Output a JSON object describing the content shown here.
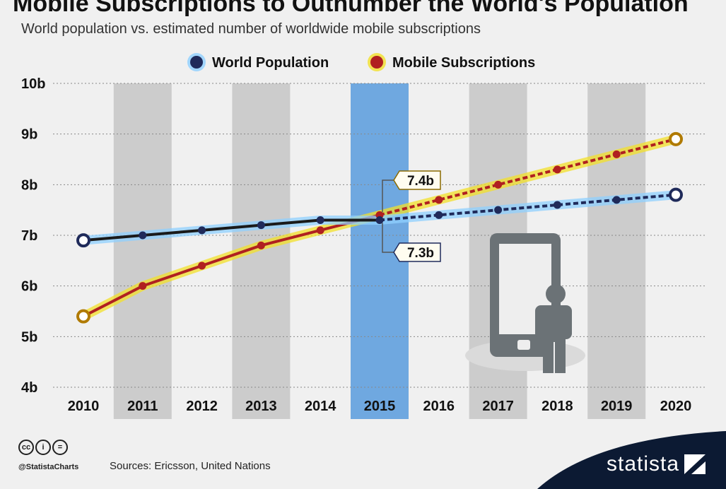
{
  "header": {
    "title": "Mobile Subscriptions to Outnumber the World's Population",
    "subtitle": "World population vs. estimated number of worldwide mobile subscriptions"
  },
  "footer": {
    "handle": "@StatistaCharts",
    "sources": "Sources: Ericsson, United Nations",
    "brand": "statista",
    "cc_icons": [
      "cc-icon",
      "by-icon",
      "nd-icon"
    ]
  },
  "colors": {
    "background": "#f0f0f0",
    "band": "#cccccc",
    "highlight": "#6fa8e0",
    "population": "#1f2a5a",
    "population_glow": "#8fd0ff",
    "subscriptions": "#b02020",
    "subscriptions_glow": "#f3e02a",
    "brand_bar": "#0c1a33"
  },
  "chart_data": {
    "type": "line",
    "x": [
      "2010",
      "2011",
      "2012",
      "2013",
      "2014",
      "2015",
      "2016",
      "2017",
      "2018",
      "2019",
      "2020"
    ],
    "ylim": [
      4,
      10
    ],
    "yticks": [
      "4b",
      "5b",
      "6b",
      "7b",
      "8b",
      "9b",
      "10b"
    ],
    "legend_position": "top",
    "projection_from": "2015",
    "highlight_category": "2015",
    "series": [
      {
        "name": "World Population",
        "values": [
          6.9,
          7.0,
          7.1,
          7.2,
          7.3,
          7.3,
          7.4,
          7.5,
          7.6,
          7.7,
          7.8
        ]
      },
      {
        "name": "Mobile Subscriptions",
        "values": [
          5.4,
          6.0,
          6.4,
          6.8,
          7.1,
          7.4,
          7.7,
          8.0,
          8.3,
          8.6,
          8.9
        ]
      }
    ],
    "annotations": [
      {
        "label": "7.4b",
        "x": "2015",
        "value": 7.4,
        "series": "Mobile Subscriptions"
      },
      {
        "label": "7.3b",
        "x": "2015",
        "value": 7.3,
        "series": "World Population"
      }
    ]
  }
}
